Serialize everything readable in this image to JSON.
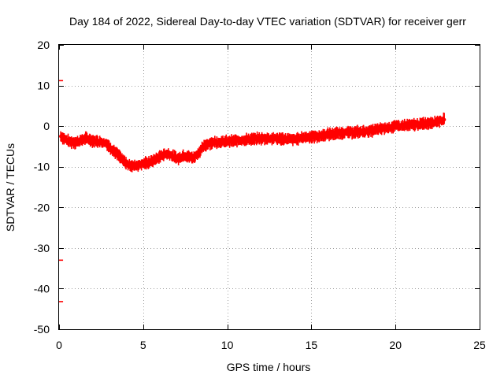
{
  "chart_data": {
    "type": "scatter",
    "title": "Day 184 of 2022, Sidereal Day-to-day VTEC variation (SDTVAR) for receiver gerr",
    "xlabel": "GPS time / hours",
    "ylabel": "SDTVAR / TECUs",
    "xlim": [
      0,
      25
    ],
    "ylim": [
      -50,
      20
    ],
    "xticks": [
      0,
      5,
      10,
      15,
      20,
      25
    ],
    "yticks": [
      -50,
      -40,
      -30,
      -20,
      -10,
      0,
      10,
      20
    ],
    "xtick_labels": [
      "0",
      "5",
      "10",
      "15",
      "20",
      "25"
    ],
    "ytick_labels": [
      "-50",
      "-40",
      "-30",
      "-20",
      "-10",
      "0",
      "10",
      "20"
    ],
    "grid": true,
    "color": "#ff0000",
    "band_halfwidth": 1.2,
    "series": [
      {
        "name": "SDTVAR",
        "x": [
          0.1,
          0.3,
          0.6,
          1.0,
          1.3,
          1.6,
          2.0,
          2.4,
          2.8,
          3.1,
          3.5,
          3.8,
          4.1,
          4.4,
          4.7,
          5.0,
          5.3,
          5.6,
          5.9,
          6.2,
          6.5,
          6.8,
          7.1,
          7.4,
          7.7,
          8.0,
          8.3,
          8.6,
          8.9,
          9.2,
          9.6,
          10.0,
          10.5,
          11.0,
          11.5,
          12.0,
          12.5,
          13.0,
          13.5,
          14.0,
          14.5,
          15.0,
          15.5,
          16.0,
          16.5,
          17.0,
          17.5,
          18.0,
          18.5,
          19.0,
          19.5,
          20.0,
          20.5,
          21.0,
          21.5,
          22.0,
          22.5,
          22.9
        ],
        "y": [
          -2.5,
          -3.0,
          -3.8,
          -4.0,
          -3.5,
          -3.0,
          -3.6,
          -3.8,
          -4.2,
          -5.5,
          -7.0,
          -8.5,
          -9.5,
          -9.8,
          -9.6,
          -9.2,
          -9.0,
          -8.5,
          -7.8,
          -7.0,
          -6.8,
          -7.5,
          -8.0,
          -7.2,
          -7.5,
          -7.8,
          -6.5,
          -5.0,
          -4.2,
          -4.0,
          -3.9,
          -3.8,
          -3.6,
          -3.4,
          -3.2,
          -3.1,
          -3.0,
          -3.1,
          -3.2,
          -3.3,
          -2.8,
          -2.6,
          -2.5,
          -2.0,
          -1.8,
          -1.6,
          -1.5,
          -1.4,
          -1.2,
          -0.8,
          -0.4,
          0.0,
          0.1,
          0.3,
          0.5,
          0.8,
          1.2,
          1.6
        ]
      },
      {
        "name": "SDTVAR outliers",
        "x": [
          0.05,
          0.05,
          0.05
        ],
        "y": [
          11.2,
          -33.0,
          -43.2
        ]
      }
    ]
  }
}
